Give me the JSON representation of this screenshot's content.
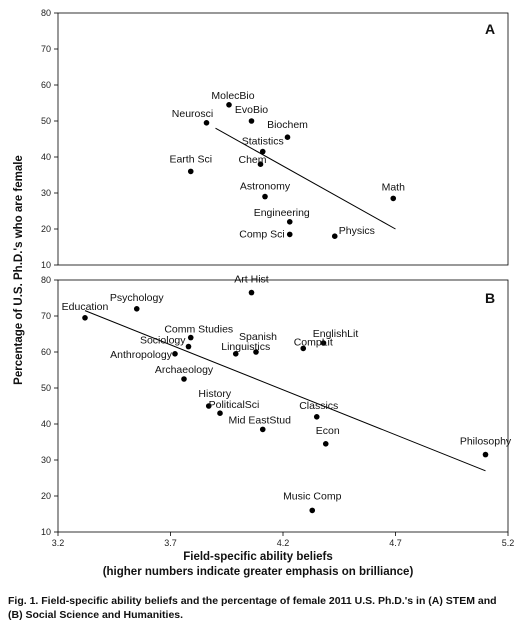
{
  "chart_data": {
    "type": "scatter",
    "xlabel": "Field-specific ability beliefs",
    "xlabel_sub": "(higher numbers indicate greater emphasis on brilliance)",
    "ylabel": "Percentage of U.S. Ph.D.'s who are female",
    "xlim": [
      3.2,
      5.2
    ],
    "x_ticks": [
      "3.2",
      "3.7",
      "4.2",
      "4.7",
      "5.2"
    ],
    "panels": [
      {
        "letter": "A",
        "ylim": [
          10,
          80
        ],
        "y_ticks": [
          "10",
          "20",
          "30",
          "40",
          "50",
          "60",
          "70",
          "80"
        ],
        "trendline": [
          [
            3.9,
            48
          ],
          [
            4.7,
            20
          ]
        ],
        "points": [
          {
            "label": "MolecBio",
            "x": 3.96,
            "y": 54.5
          },
          {
            "label": "EvoBio",
            "x": 4.06,
            "y": 50
          },
          {
            "label": "Neurosci",
            "x": 3.86,
            "y": 49.5
          },
          {
            "label": "Biochem",
            "x": 4.22,
            "y": 45.5
          },
          {
            "label": "Statistics",
            "x": 4.11,
            "y": 41.5
          },
          {
            "label": "Chem",
            "x": 4.1,
            "y": 38
          },
          {
            "label": "Earth Sci",
            "x": 3.79,
            "y": 36
          },
          {
            "label": "Astronomy",
            "x": 4.12,
            "y": 29
          },
          {
            "label": "Math",
            "x": 4.69,
            "y": 28.5
          },
          {
            "label": "Engineering",
            "x": 4.23,
            "y": 22
          },
          {
            "label": "Comp Sci",
            "x": 4.23,
            "y": 18.5
          },
          {
            "label": "Physics",
            "x": 4.43,
            "y": 18
          }
        ]
      },
      {
        "letter": "B",
        "ylim": [
          10,
          80
        ],
        "y_ticks": [
          "10",
          "20",
          "30",
          "40",
          "50",
          "60",
          "70",
          "80"
        ],
        "trendline": [
          [
            3.32,
            71.5
          ],
          [
            5.1,
            27
          ]
        ],
        "points": [
          {
            "label": "Art Hist",
            "x": 4.06,
            "y": 76.5
          },
          {
            "label": "Psychology",
            "x": 3.55,
            "y": 72
          },
          {
            "label": "Education",
            "x": 3.32,
            "y": 69.5
          },
          {
            "label": "Comm Studies",
            "x": 3.79,
            "y": 64
          },
          {
            "label": "EnglishLit",
            "x": 4.38,
            "y": 62.5
          },
          {
            "label": "Sociology",
            "x": 3.78,
            "y": 61.5
          },
          {
            "label": "Spanish",
            "x": 4.08,
            "y": 60
          },
          {
            "label": "CompLit",
            "x": 4.29,
            "y": 61
          },
          {
            "label": "Linguistics",
            "x": 3.99,
            "y": 59.5
          },
          {
            "label": "Anthropology",
            "x": 3.72,
            "y": 59.5
          },
          {
            "label": "Archaeology",
            "x": 3.76,
            "y": 52.5
          },
          {
            "label": "History",
            "x": 3.87,
            "y": 45
          },
          {
            "label": "PoliticalSci",
            "x": 3.92,
            "y": 43
          },
          {
            "label": "Classics",
            "x": 4.35,
            "y": 42
          },
          {
            "label": "Mid EastStud",
            "x": 4.11,
            "y": 38.5
          },
          {
            "label": "Econ",
            "x": 4.39,
            "y": 34.5
          },
          {
            "label": "Philosophy",
            "x": 5.1,
            "y": 31.5
          },
          {
            "label": "Music Comp",
            "x": 4.33,
            "y": 16
          }
        ]
      }
    ]
  },
  "caption": "Fig. 1. Field-specific ability beliefs and the percentage of female 2011 U.S. Ph.D.'s in (A) STEM and (B) Social Science and Humanities."
}
